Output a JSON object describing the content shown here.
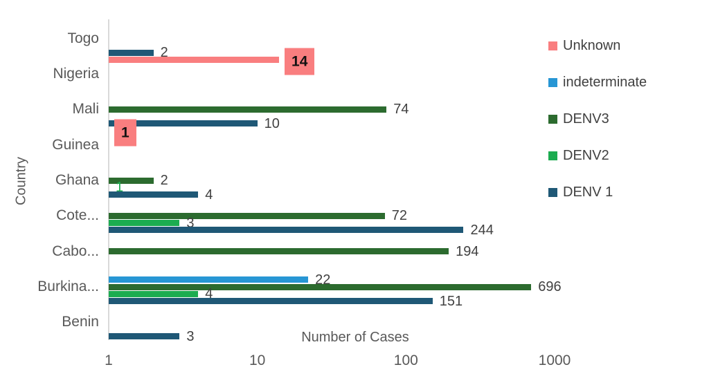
{
  "chart_data": {
    "type": "bar",
    "orientation": "horizontal",
    "x_scale": "log",
    "x_range": [
      1,
      1000
    ],
    "x_ticks": [
      "1",
      "10",
      "100",
      "1000"
    ],
    "xlabel": "Number of Cases",
    "ylabel": "Country",
    "grid": false,
    "legend_position": "right",
    "categories": [
      "Togo",
      "Nigeria",
      "Mali",
      "Guinea",
      "Ghana",
      "Cote...",
      "Cabo...",
      "Burkina...",
      "Benin"
    ],
    "series": [
      {
        "name": "Unknown",
        "color": "#F97E7F",
        "boxed_labels": true,
        "values": [
          null,
          14,
          null,
          1,
          null,
          null,
          null,
          null,
          null
        ]
      },
      {
        "name": "indeterminate",
        "color": "#2796D4",
        "values": [
          null,
          null,
          null,
          null,
          null,
          null,
          null,
          22,
          null
        ]
      },
      {
        "name": "DENV3",
        "color": "#2C6B2F",
        "values": [
          null,
          null,
          74,
          null,
          2,
          72,
          194,
          696,
          null
        ]
      },
      {
        "name": "DENV2",
        "color": "#1CAC50",
        "values": [
          null,
          null,
          null,
          null,
          1,
          3,
          null,
          4,
          null
        ]
      },
      {
        "name": "DENV 1",
        "color": "#1F5876",
        "values": [
          2,
          null,
          10,
          null,
          4,
          244,
          null,
          151,
          3
        ]
      }
    ],
    "label_overrides": [
      {
        "category": "Ghana",
        "series": "DENV2",
        "color": "#1CAC50"
      }
    ],
    "colors": {
      "axis_line": "#d9d9d9",
      "axis_text": "#595959",
      "data_label_text": "#404040",
      "boxed_label_text": "#111111"
    }
  }
}
